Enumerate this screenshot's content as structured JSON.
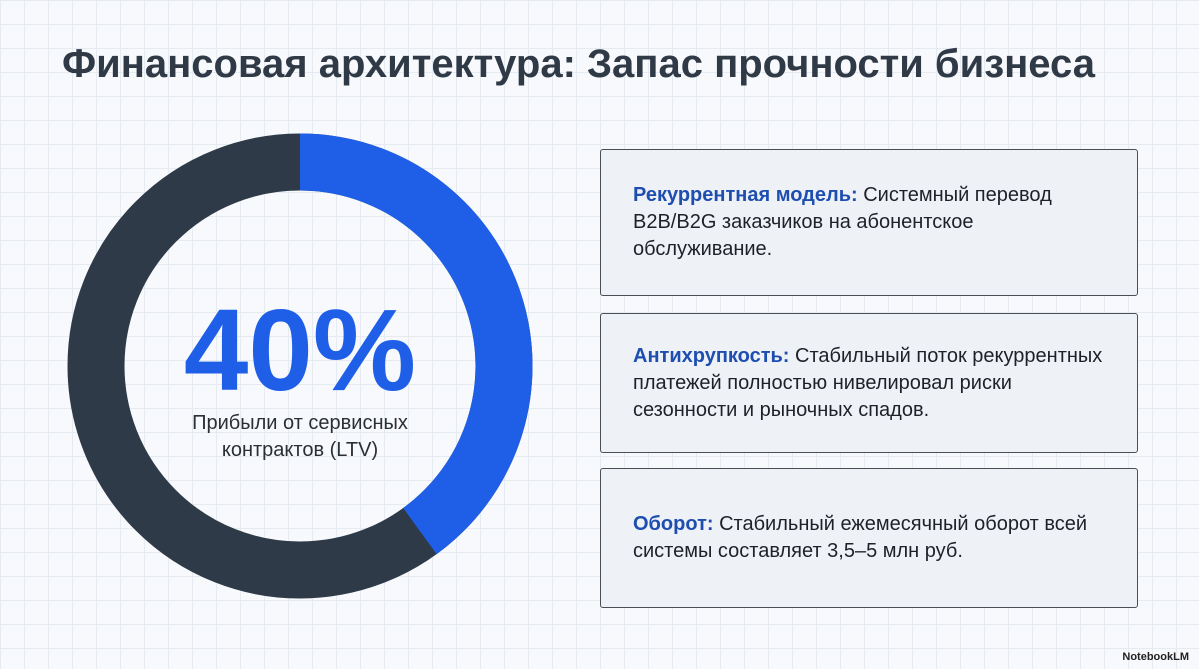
{
  "title": "Финансовая архитектура: Запас прочности бизнеса",
  "chart_data": {
    "type": "donut",
    "values": [
      40
    ],
    "value_labels": [
      "40%"
    ],
    "ylim": [
      0,
      100
    ],
    "color": "#1f5fe8",
    "track_color": "#2e3a47",
    "center_label": "Прибыли от сервисных контрактов (LTV)"
  },
  "cards": [
    {
      "label": "Рекуррентная модель:",
      "text": "Системный перевод B2B/B2G заказчиков на абонентское обслуживание."
    },
    {
      "label": "Антихрупкость:",
      "text": "Стабильный поток рекуррентных платежей полностью нивелировал риски сезонности и рыночных спадов."
    },
    {
      "label": "Оборот:",
      "text": "Стабильный ежемесячный оборот всей системы составляет 3,5–5 млн руб."
    }
  ],
  "footer": "NotebookLM"
}
